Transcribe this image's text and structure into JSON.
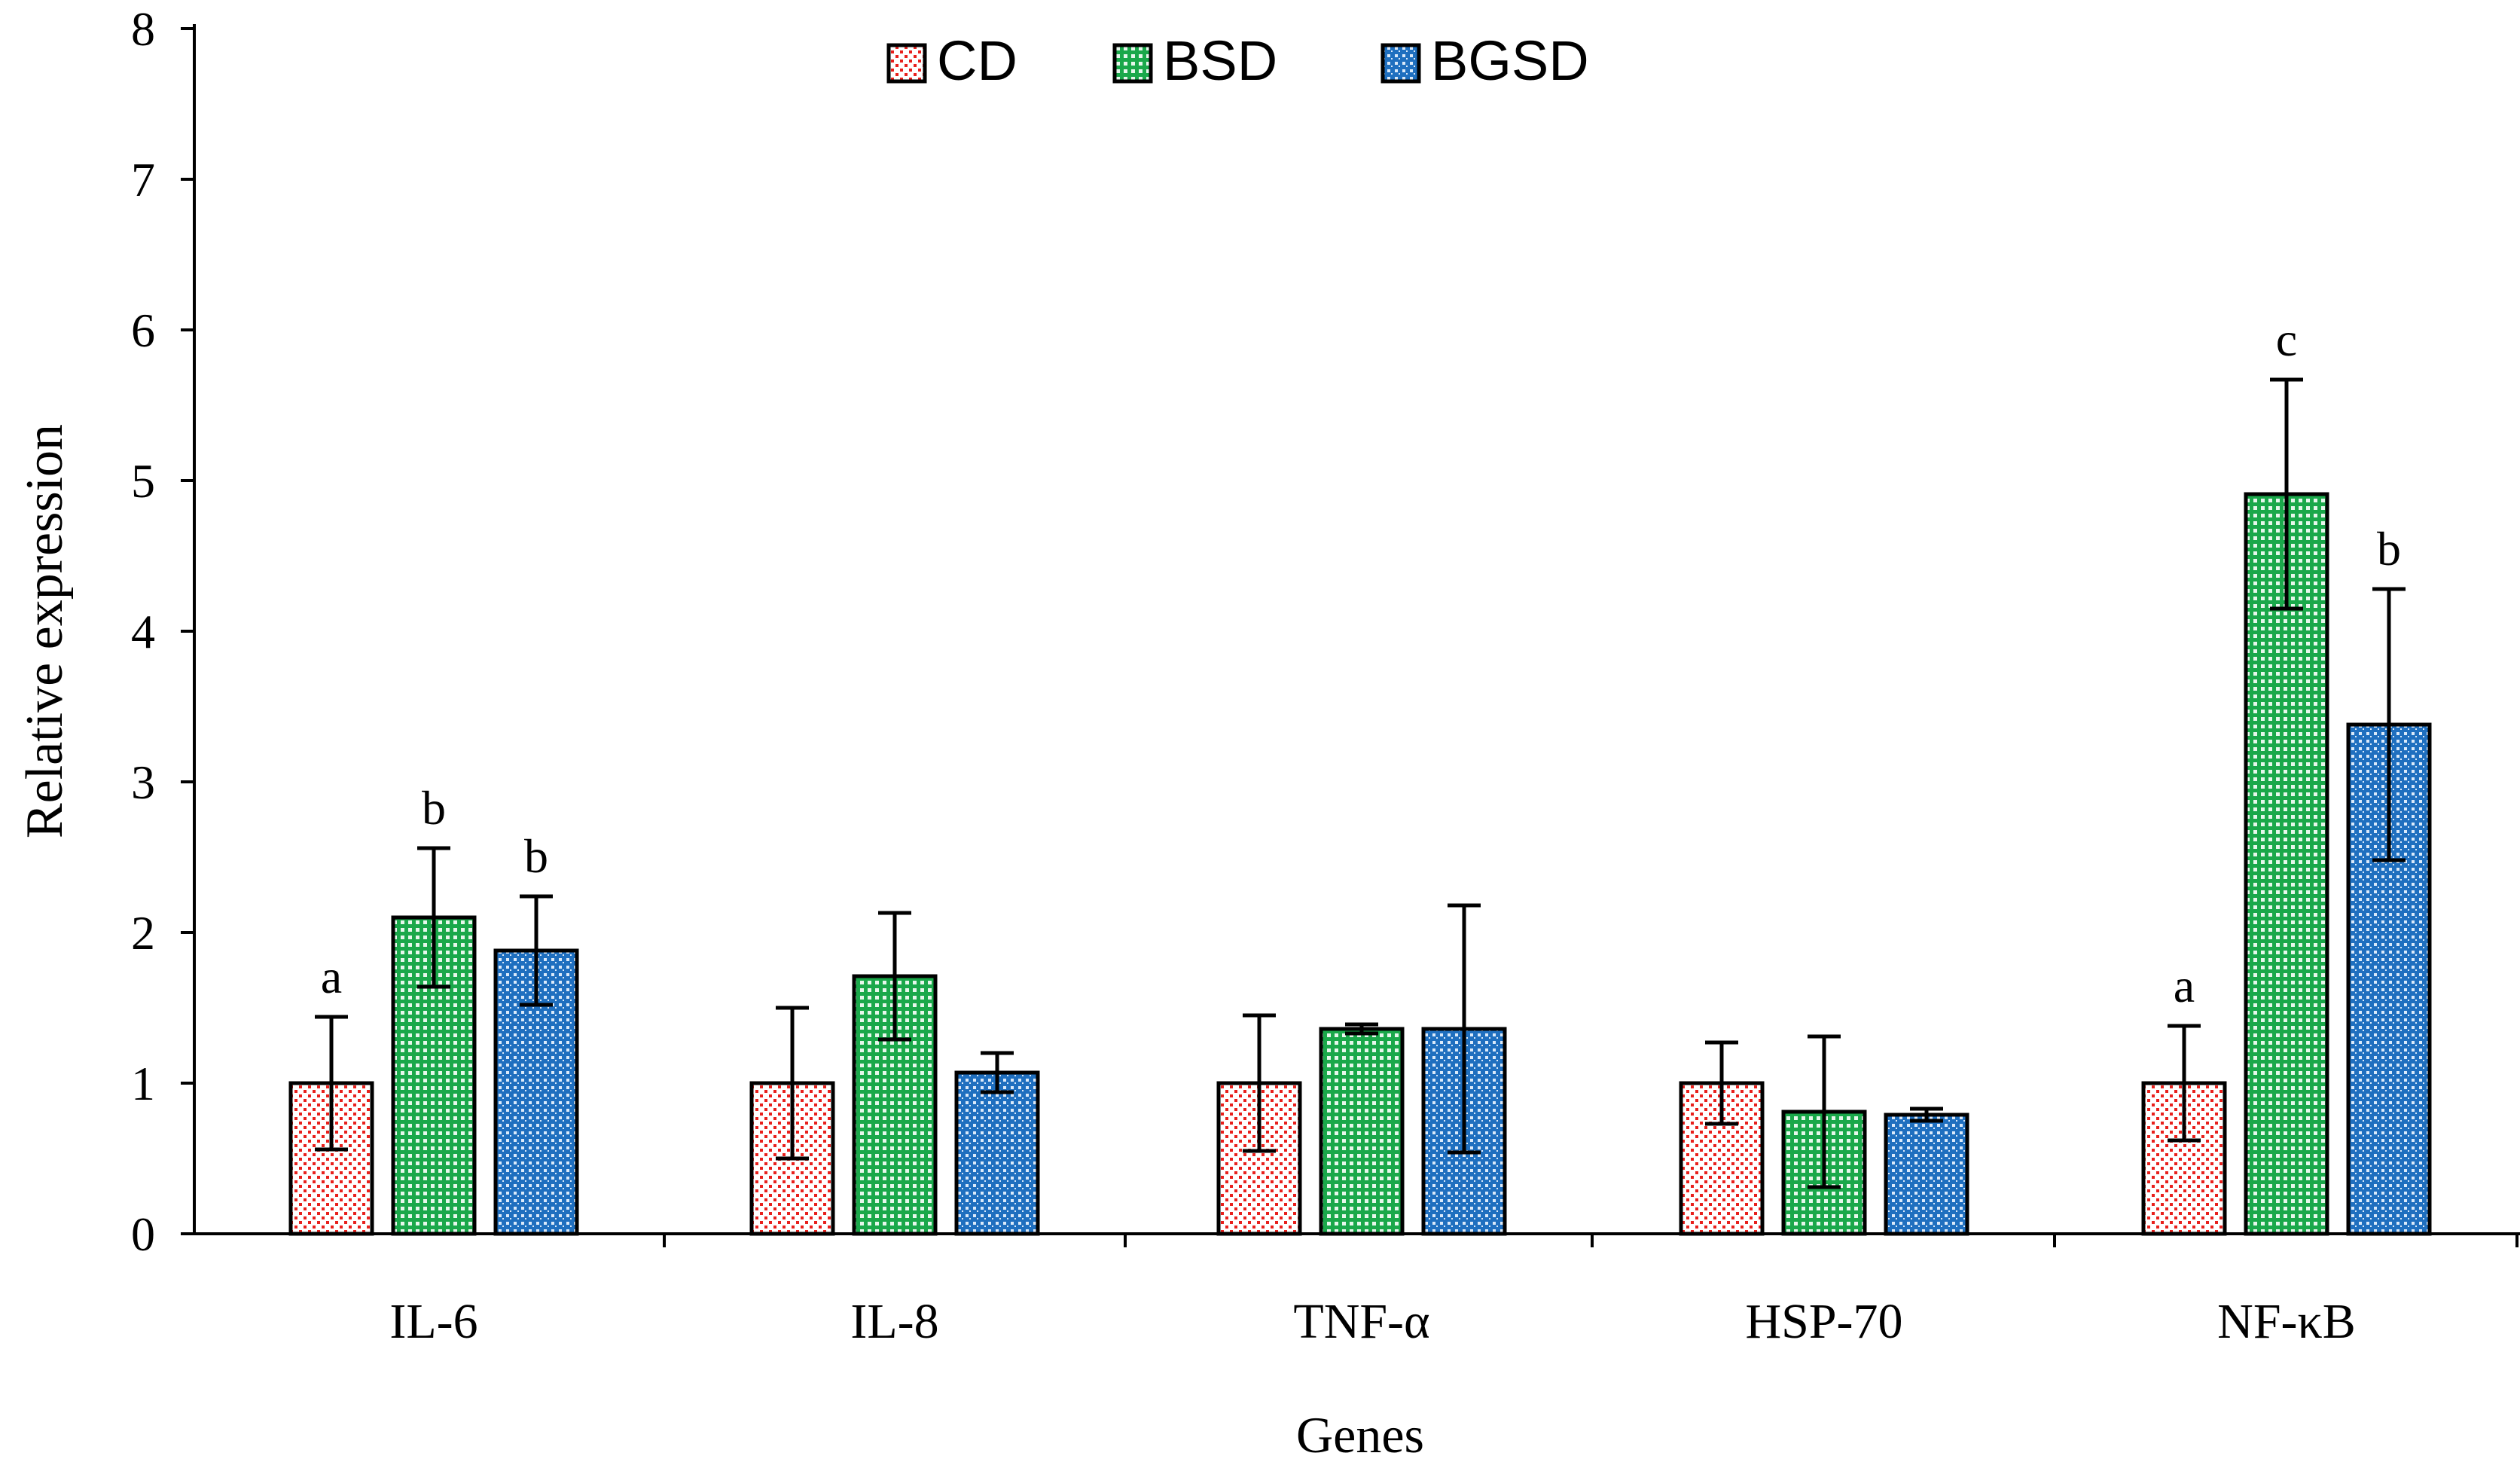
{
  "chart_data": {
    "type": "bar",
    "title": "",
    "xlabel": "Genes",
    "ylabel": "Relative expression",
    "ylim": [
      0,
      8
    ],
    "yticks": [
      "0",
      "1",
      "2",
      "3",
      "4",
      "5",
      "6",
      "7",
      "8"
    ],
    "grid": false,
    "legend_position": "top-center",
    "categories": [
      "IL-6",
      "IL-8",
      "TNF-α",
      "HSP-70",
      "NF-κB"
    ],
    "series": [
      {
        "name": "CD",
        "color": "#e8201c",
        "pattern": "dots",
        "values": [
          1.0,
          1.0,
          1.0,
          1.0,
          1.0
        ],
        "errors": [
          0.44,
          0.5,
          0.45,
          0.27,
          0.38
        ],
        "labels": [
          "a",
          "",
          "",
          "",
          "a"
        ]
      },
      {
        "name": "BSD",
        "color": "#1aa84a",
        "pattern": "grid",
        "values": [
          2.1,
          1.71,
          1.36,
          0.81,
          4.91
        ],
        "errors": [
          0.46,
          0.42,
          0.03,
          0.5,
          0.76
        ],
        "labels": [
          "b",
          "",
          "",
          "",
          "c"
        ]
      },
      {
        "name": "BGSD",
        "color": "#1f6fbf",
        "pattern": "cross",
        "values": [
          1.88,
          1.07,
          1.36,
          0.79,
          3.38
        ],
        "errors": [
          0.36,
          0.13,
          0.82,
          0.04,
          0.9
        ],
        "labels": [
          "b",
          "",
          "",
          "",
          "b"
        ]
      }
    ]
  }
}
